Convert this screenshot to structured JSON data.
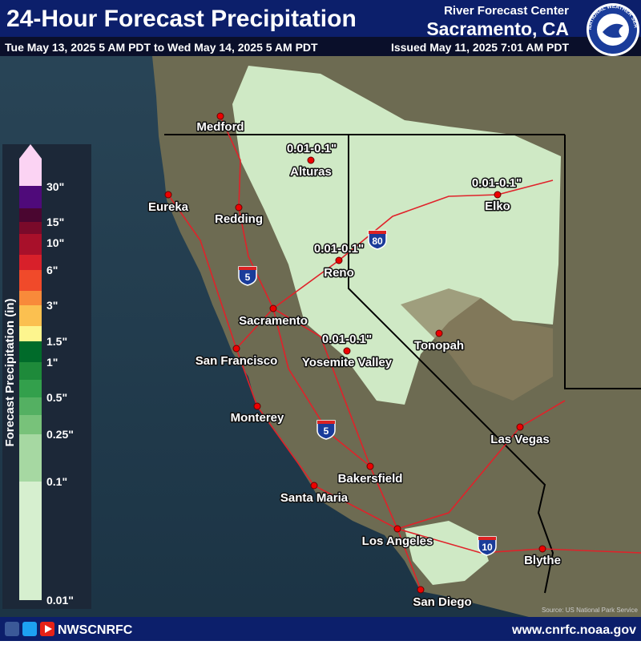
{
  "header": {
    "title": "24-Hour Forecast Precipitation",
    "period": "Tue May 13, 2025 5 AM PDT to Wed May 14, 2025 5 AM PDT",
    "center_line1": "River Forecast Center",
    "center_line2": "Sacramento, CA",
    "issued": "Issued May 11, 2025 7:01 AM PDT"
  },
  "logo": {
    "text": "NATIONAL WEATHER SERVICE"
  },
  "legend": {
    "title": "Forecast Precipitation (in)",
    "labels": [
      "30\"",
      "15\"",
      "10\"",
      "6\"",
      "3\"",
      "1.5\"",
      "1\"",
      "0.5\"",
      "0.25\"",
      "0.1\"",
      "0.01\""
    ]
  },
  "map": {
    "cities": [
      "Medford",
      "Eureka",
      "Redding",
      "Alturas",
      "Reno",
      "Elko",
      "Sacramento",
      "San Francisco",
      "Yosemite Valley",
      "Tonopah",
      "Monterey",
      "Las Vegas",
      "Bakersfield",
      "Santa Maria",
      "Los Angeles",
      "Blythe",
      "San Diego"
    ],
    "amounts": [
      "0.01-0.1\"",
      "0.01-0.1\"",
      "0.01-0.1\"",
      "0.01-0.1\""
    ],
    "shields": [
      "5",
      "80",
      "5",
      "10"
    ],
    "source": "Source: US National Park Service"
  },
  "footer": {
    "handle": "NWSCNRFC",
    "url": "www.cnrfc.noaa.gov"
  }
}
